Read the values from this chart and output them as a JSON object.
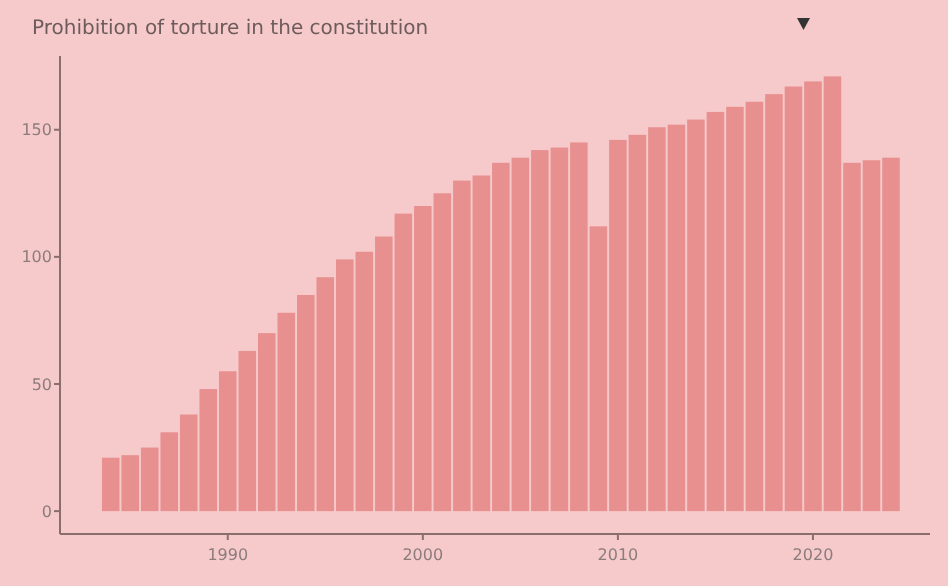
{
  "chart_data": {
    "type": "bar",
    "title": "Prohibition of torture in the constitution",
    "x": [
      1984,
      1985,
      1986,
      1987,
      1988,
      1989,
      1990,
      1991,
      1992,
      1993,
      1994,
      1995,
      1996,
      1997,
      1998,
      1999,
      2000,
      2001,
      2002,
      2003,
      2004,
      2005,
      2006,
      2007,
      2008,
      2009,
      2010,
      2011,
      2012,
      2013,
      2014,
      2015,
      2016,
      2017,
      2018,
      2019,
      2020,
      2021,
      2022,
      2023,
      2024
    ],
    "values": [
      21,
      22,
      25,
      31,
      38,
      48,
      55,
      63,
      70,
      78,
      85,
      92,
      99,
      102,
      108,
      117,
      120,
      125,
      130,
      132,
      137,
      139,
      142,
      143,
      145,
      112,
      146,
      148,
      151,
      152,
      154,
      157,
      159,
      161,
      164,
      167,
      169,
      171,
      137,
      138,
      139
    ],
    "color": "#e89090",
    "xlim": [
      1981.4,
      2026
    ],
    "xticks": [
      1990,
      2000,
      2010,
      2020
    ],
    "ylim": [
      -9,
      179
    ],
    "yticks": [
      0,
      50,
      100,
      150
    ],
    "grid": false
  }
}
